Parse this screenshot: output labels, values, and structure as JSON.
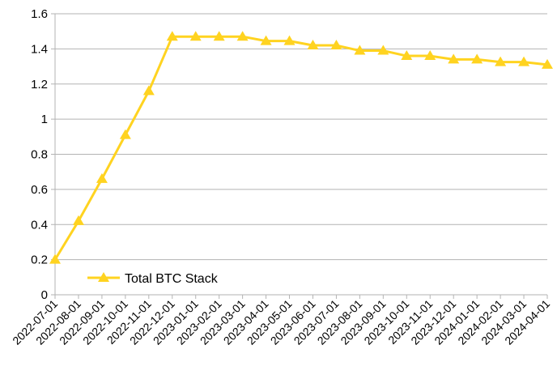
{
  "chart_data": {
    "type": "line",
    "title": "",
    "xlabel": "",
    "ylabel": "",
    "ylim": [
      0,
      1.6
    ],
    "yticks": [
      "0",
      "0.2",
      "0.4",
      "0.6",
      "0.8",
      "1",
      "1.2",
      "1.4",
      "1.6"
    ],
    "grid": "horizontal",
    "legend_position": "bottom-left",
    "categories": [
      "2022-07-01",
      "2022-08-01",
      "2022-09-01",
      "2022-10-01",
      "2022-11-01",
      "2022-12-01",
      "2023-01-01",
      "2023-02-01",
      "2023-03-01",
      "2023-04-01",
      "2023-05-01",
      "2023-06-01",
      "2023-07-01",
      "2023-08-01",
      "2023-09-01",
      "2023-10-01",
      "2023-11-01",
      "2023-12-01",
      "2024-01-01",
      "2024-02-01",
      "2024-03-01",
      "2024-04-01"
    ],
    "series": [
      {
        "name": "Total BTC Stack",
        "color": "#FFD320",
        "marker": "triangle",
        "values": [
          0.2,
          0.42,
          0.66,
          0.91,
          1.16,
          1.47,
          1.47,
          1.47,
          1.47,
          1.445,
          1.445,
          1.42,
          1.42,
          1.39,
          1.39,
          1.36,
          1.36,
          1.34,
          1.34,
          1.325,
          1.325,
          1.31
        ]
      }
    ]
  }
}
